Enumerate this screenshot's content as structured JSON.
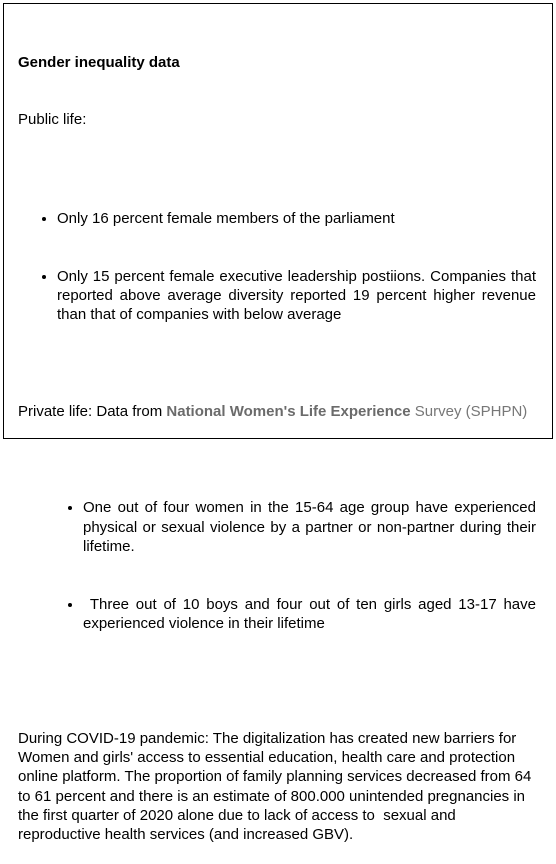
{
  "title": "Gender inequality data",
  "public_life": {
    "label": "Public life:",
    "bullets": [
      "Only 16 percent female members of the parliament",
      "Only 15 percent female executive leadership postiions. Companies that reported above average diversity reported 19 percent higher revenue than that of companies with below average"
    ]
  },
  "private_life": {
    "label": "Private life: Data from ",
    "source_name": "National Women's Life Experience",
    "source_rest": " Survey (SPHPN)",
    "bullets": [
      "One out of four women in the 15-64 age group have experienced physical or sexual violence by a partner or non-partner during their lifetime.",
      " Three out of 10 boys and four out of ten girls aged 13-17 have experienced violence in their lifetime"
    ]
  },
  "covid": "During COVID-19 pandemic: The digitalization has created new barriers for Women and girls' access to essential education, health care and protection online platform. The proportion of family planning services decreased from 64 to 61 percent and there is an estimate of 800.000 unintended pregnancies in the first quarter of 2020 alone due to lack of access to  sexual and reproductive health services (and increased GBV)."
}
